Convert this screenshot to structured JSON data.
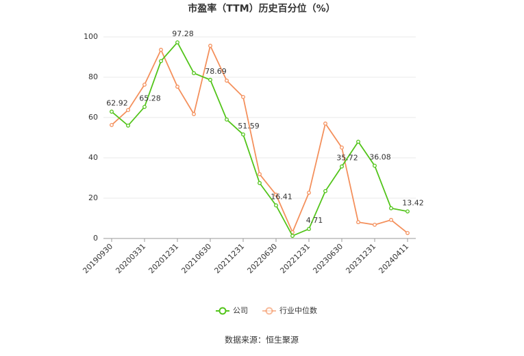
{
  "chart_data": {
    "type": "line",
    "title": "市盈率（TTM）历史百分位（%）",
    "categories": [
      "20190930",
      null,
      "20200331",
      null,
      "20201231",
      null,
      "20210630",
      null,
      "20211231",
      null,
      "20220630",
      null,
      "20221231",
      null,
      "20230630",
      null,
      "20231231",
      null,
      "20240411"
    ],
    "series": [
      {
        "name": "公司",
        "color": "#52c41a",
        "values": [
          62.92,
          56,
          65.28,
          88,
          97.28,
          82,
          78.69,
          59,
          51.59,
          27.5,
          16.41,
          1.3,
          4.71,
          23.5,
          35.72,
          48,
          36.08,
          15,
          13.42
        ],
        "value_labels": [
          "62.92",
          null,
          "65.28",
          null,
          "97.28",
          null,
          "78.69",
          null,
          "51.59",
          null,
          "16.41",
          null,
          "4.71",
          null,
          "35.72",
          null,
          "36.08",
          null,
          "13.42"
        ]
      },
      {
        "name": "行业中位数",
        "color": "#f4905c",
        "values": [
          56.3,
          63.7,
          76.3,
          93.6,
          75.3,
          61.7,
          95.6,
          78.3,
          70.2,
          31.9,
          21.7,
          3.1,
          22.7,
          57,
          45.1,
          8.1,
          6.8,
          9.2,
          2.7
        ]
      }
    ],
    "ylim": [
      0,
      100
    ],
    "yticks": [
      0,
      20,
      40,
      60,
      80,
      100
    ],
    "grid": true,
    "legend": "bottom",
    "source": "数据来源：恒生聚源"
  }
}
